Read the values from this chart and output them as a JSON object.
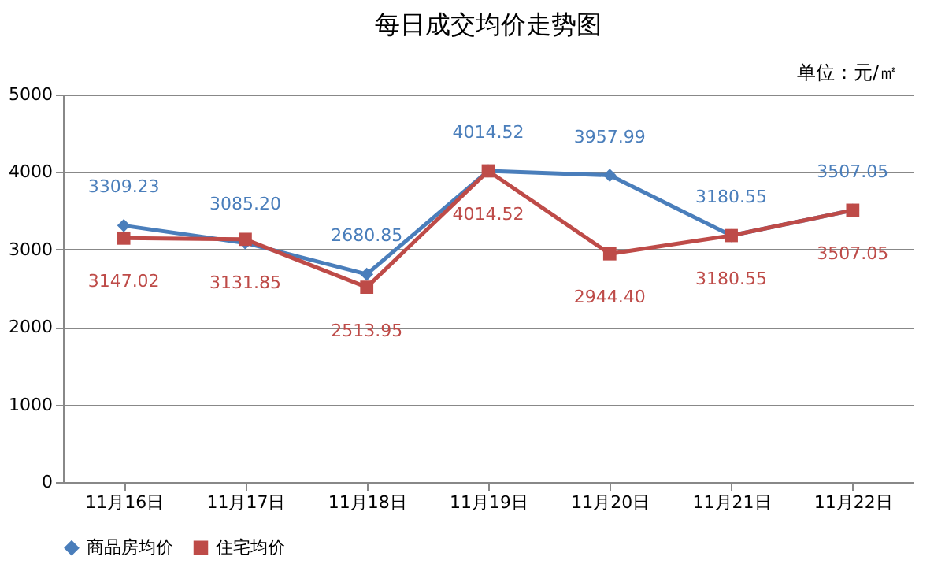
{
  "chart_data": {
    "type": "line",
    "title": "每日成交均价走势图",
    "annotations": [
      "单位：元/㎡"
    ],
    "categories": [
      "11月16日",
      "11月17日",
      "11月18日",
      "11月19日",
      "11月20日",
      "11月21日",
      "11月22日"
    ],
    "series": [
      {
        "name": "商品房均价",
        "color": "#4a7ebb",
        "marker": "diamond",
        "values": [
          3309.23,
          3085.2,
          2680.85,
          4014.52,
          3957.99,
          3180.55,
          3507.05
        ],
        "value_labels": [
          "3309.23",
          "3085.20",
          "2680.85",
          "4014.52",
          "3957.99",
          "3180.55",
          "3507.05"
        ]
      },
      {
        "name": "住宅均价",
        "color": "#be4b48",
        "marker": "square",
        "values": [
          3147.02,
          3131.85,
          2513.95,
          4014.52,
          2944.4,
          3180.55,
          3507.05
        ],
        "value_labels": [
          "3147.02",
          "3131.85",
          "2513.95",
          "4014.52",
          "2944.40",
          "3180.55",
          "3507.05"
        ]
      }
    ],
    "ylim": [
      0,
      5000
    ],
    "yticks": [
      0,
      1000,
      2000,
      3000,
      4000,
      5000
    ],
    "grid": "y",
    "legend": "bottom"
  }
}
